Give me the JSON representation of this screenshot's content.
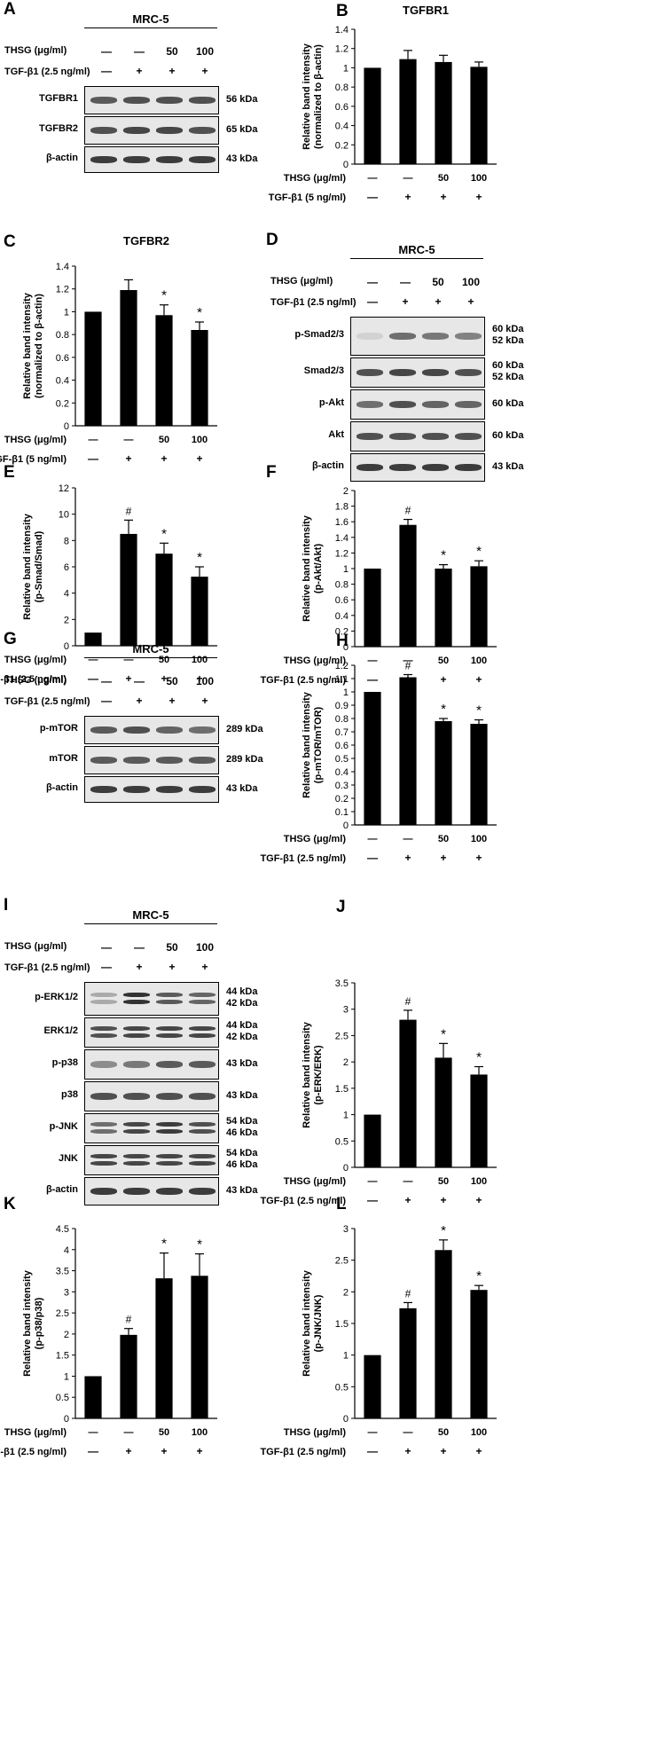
{
  "common": {
    "cell_line": "MRC-5",
    "thsg_label": "THSG (μg/ml)",
    "tgf_label_25": "TGF-β1 (2.5 ng/ml)",
    "tgf_label_5": "TGF-β1 (5 ng/ml)",
    "thsg_values": [
      "—",
      "—",
      "50",
      "100"
    ],
    "tgf_values": [
      "—",
      "+",
      "+",
      "+"
    ]
  },
  "blots": [
    {
      "panel": "A",
      "rows": [
        {
          "label": "TGFBR1",
          "kda": [
            "56 kDa"
          ],
          "intensity": [
            0.7,
            0.75,
            0.75,
            0.75
          ],
          "double": false
        },
        {
          "label": "TGFBR2",
          "kda": [
            "65 kDa"
          ],
          "intensity": [
            0.75,
            0.8,
            0.8,
            0.75
          ],
          "double": false
        },
        {
          "label": "β-actin",
          "kda": [
            "43 kDa"
          ],
          "intensity": [
            0.85,
            0.85,
            0.85,
            0.85
          ],
          "double": false
        }
      ]
    },
    {
      "panel": "D",
      "rows": [
        {
          "label": "p-Smad2/3",
          "kda": [
            "60 kDa",
            "52 kDa"
          ],
          "intensity": [
            0.1,
            0.6,
            0.55,
            0.5
          ],
          "double": false
        },
        {
          "label": "Smad2/3",
          "kda": [
            "60 kDa",
            "52 kDa"
          ],
          "intensity": [
            0.75,
            0.8,
            0.8,
            0.75
          ],
          "double": false
        },
        {
          "label": "p-Akt",
          "kda": [
            "60 kDa"
          ],
          "intensity": [
            0.6,
            0.75,
            0.65,
            0.65
          ],
          "double": false
        },
        {
          "label": "Akt",
          "kda": [
            "60 kDa"
          ],
          "intensity": [
            0.75,
            0.75,
            0.75,
            0.75
          ],
          "double": false
        },
        {
          "label": "β-actin",
          "kda": [
            "43 kDa"
          ],
          "intensity": [
            0.85,
            0.85,
            0.85,
            0.85
          ],
          "double": false
        }
      ]
    },
    {
      "panel": "G",
      "rows": [
        {
          "label": "p-mTOR",
          "kda": [
            "289 kDa"
          ],
          "intensity": [
            0.7,
            0.75,
            0.65,
            0.6
          ],
          "double": false
        },
        {
          "label": "mTOR",
          "kda": [
            "289 kDa"
          ],
          "intensity": [
            0.7,
            0.7,
            0.7,
            0.7
          ],
          "double": false
        },
        {
          "label": "β-actin",
          "kda": [
            "43 kDa"
          ],
          "intensity": [
            0.85,
            0.85,
            0.85,
            0.85
          ],
          "double": false
        }
      ]
    },
    {
      "panel": "I",
      "rows": [
        {
          "label": "p-ERK1/2",
          "kda": [
            "44 kDa",
            "42 kDa"
          ],
          "intensity": [
            0.3,
            0.9,
            0.7,
            0.65
          ],
          "double": true
        },
        {
          "label": "ERK1/2",
          "kda": [
            "44 kDa",
            "42 kDa"
          ],
          "intensity": [
            0.75,
            0.8,
            0.8,
            0.8
          ],
          "double": true
        },
        {
          "label": "p-p38",
          "kda": [
            "43 kDa"
          ],
          "intensity": [
            0.45,
            0.55,
            0.7,
            0.7
          ],
          "double": false
        },
        {
          "label": "p38",
          "kda": [
            "43 kDa"
          ],
          "intensity": [
            0.75,
            0.75,
            0.75,
            0.75
          ],
          "double": false
        },
        {
          "label": "p-JNK",
          "kda": [
            "54 kDa",
            "46 kDa"
          ],
          "intensity": [
            0.6,
            0.8,
            0.85,
            0.75
          ],
          "double": true
        },
        {
          "label": "JNK",
          "kda": [
            "54 kDa",
            "46 kDa"
          ],
          "intensity": [
            0.8,
            0.8,
            0.8,
            0.8
          ],
          "double": true
        },
        {
          "label": "β-actin",
          "kda": [
            "43 kDa"
          ],
          "intensity": [
            0.85,
            0.85,
            0.85,
            0.85
          ],
          "double": false
        }
      ]
    }
  ],
  "chart_data": [
    {
      "panel": "B",
      "type": "bar",
      "title": "TGFBR1",
      "ylabel": [
        "Relative band intensity",
        "(normalized to β-actin)"
      ],
      "ylim": [
        0,
        1.4
      ],
      "ticks": [
        "0",
        "0.2",
        "0.4",
        "0.6",
        "0.8",
        "1",
        "1.2",
        "1.4"
      ],
      "tickvals": [
        0,
        0.2,
        0.4,
        0.6,
        0.8,
        1,
        1.2,
        1.4
      ],
      "values": [
        1.0,
        1.09,
        1.06,
        1.01
      ],
      "errors": [
        0,
        0.09,
        0.07,
        0.05
      ],
      "marks": [
        "",
        "",
        "",
        ""
      ],
      "tgf": "tgf_label_5"
    },
    {
      "panel": "C",
      "type": "bar",
      "title": "TGFBR2",
      "ylabel": [
        "Relative band intensity",
        "(normalized to β-actin)"
      ],
      "ylim": [
        0,
        1.4
      ],
      "ticks": [
        "0",
        "0.2",
        "0.4",
        "0.6",
        "0.8",
        "1",
        "1.2",
        "1.4"
      ],
      "tickvals": [
        0,
        0.2,
        0.4,
        0.6,
        0.8,
        1,
        1.2,
        1.4
      ],
      "values": [
        1.0,
        1.19,
        0.97,
        0.84
      ],
      "errors": [
        0,
        0.09,
        0.09,
        0.07
      ],
      "marks": [
        "",
        "",
        "*",
        "*"
      ],
      "tgf": "tgf_label_5"
    },
    {
      "panel": "E",
      "type": "bar",
      "title": "",
      "ylabel": [
        "Relative band intensity",
        "(p-Smad/Smad)"
      ],
      "ylim": [
        0,
        12
      ],
      "ticks": [
        "0",
        "2",
        "4",
        "6",
        "8",
        "10",
        "12"
      ],
      "tickvals": [
        0,
        2,
        4,
        6,
        8,
        10,
        12
      ],
      "values": [
        1.0,
        8.5,
        7.0,
        5.25
      ],
      "errors": [
        0,
        1.05,
        0.8,
        0.75
      ],
      "marks": [
        "",
        "#",
        "*",
        "*"
      ],
      "tgf": "tgf_label_25"
    },
    {
      "panel": "F",
      "type": "bar",
      "title": "",
      "ylabel": [
        "Relative band intensity",
        "(p-Akt/Akt)"
      ],
      "ylim": [
        0,
        2
      ],
      "ticks": [
        "0",
        "0.2",
        "0.4",
        "0.6",
        "0.8",
        "1",
        "1.2",
        "1.4",
        "1.6",
        "1.8",
        "2"
      ],
      "tickvals": [
        0,
        0.2,
        0.4,
        0.6,
        0.8,
        1,
        1.2,
        1.4,
        1.6,
        1.8,
        2
      ],
      "values": [
        1.0,
        1.56,
        1.0,
        1.03
      ],
      "errors": [
        0,
        0.07,
        0.05,
        0.07
      ],
      "marks": [
        "",
        "#",
        "*",
        "*"
      ],
      "tgf": "tgf_label_25"
    },
    {
      "panel": "H",
      "type": "bar",
      "title": "",
      "ylabel": [
        "Relative band intensity",
        "(p-mTOR/mTOR)"
      ],
      "ylim": [
        0,
        1.2
      ],
      "ticks": [
        "0",
        "0.1",
        "0.2",
        "0.3",
        "0.4",
        "0.5",
        "0.6",
        "0.7",
        "0.8",
        "0.9",
        "1",
        "1.1",
        "1.2"
      ],
      "tickvals": [
        0,
        0.1,
        0.2,
        0.3,
        0.4,
        0.5,
        0.6,
        0.7,
        0.8,
        0.9,
        1,
        1.1,
        1.2
      ],
      "values": [
        1.0,
        1.11,
        0.78,
        0.76
      ],
      "errors": [
        0,
        0.02,
        0.02,
        0.03
      ],
      "marks": [
        "",
        "#",
        "*",
        "*"
      ],
      "tgf": "tgf_label_25"
    },
    {
      "panel": "J",
      "type": "bar",
      "title": "",
      "ylabel": [
        "Relative band intensity",
        "(p-ERK/ERK)"
      ],
      "ylim": [
        0,
        3.5
      ],
      "ticks": [
        "0",
        "0.5",
        "1",
        "1.5",
        "2",
        "2.5",
        "3",
        "3.5"
      ],
      "tickvals": [
        0,
        0.5,
        1,
        1.5,
        2,
        2.5,
        3,
        3.5
      ],
      "values": [
        1.0,
        2.8,
        2.08,
        1.76
      ],
      "errors": [
        0,
        0.18,
        0.27,
        0.15
      ],
      "marks": [
        "",
        "#",
        "*",
        "*"
      ],
      "tgf": "tgf_label_25"
    },
    {
      "panel": "K",
      "type": "bar",
      "title": "",
      "ylabel": [
        "Relative band intensity",
        "(p-p38/p38)"
      ],
      "ylim": [
        0,
        4.5
      ],
      "ticks": [
        "0",
        "0.5",
        "1",
        "1.5",
        "2",
        "2.5",
        "3",
        "3.5",
        "4",
        "4.5"
      ],
      "tickvals": [
        0,
        0.5,
        1,
        1.5,
        2,
        2.5,
        3,
        3.5,
        4,
        4.5
      ],
      "values": [
        1.0,
        1.98,
        3.32,
        3.38
      ],
      "errors": [
        0,
        0.15,
        0.6,
        0.52
      ],
      "marks": [
        "",
        "#",
        "*",
        "*"
      ],
      "tgf": "tgf_label_25"
    },
    {
      "panel": "L",
      "type": "bar",
      "title": "",
      "ylabel": [
        "Relative band intensity",
        "(p-JNK/JNK)"
      ],
      "ylim": [
        0,
        3
      ],
      "ticks": [
        "0",
        "0.5",
        "1",
        "1.5",
        "2",
        "2.5",
        "3"
      ],
      "tickvals": [
        0,
        0.5,
        1,
        1.5,
        2,
        2.5,
        3
      ],
      "values": [
        1.0,
        1.74,
        2.66,
        2.03
      ],
      "errors": [
        0,
        0.09,
        0.16,
        0.07
      ],
      "marks": [
        "",
        "#",
        "*",
        "*"
      ],
      "tgf": "tgf_label_25"
    }
  ]
}
